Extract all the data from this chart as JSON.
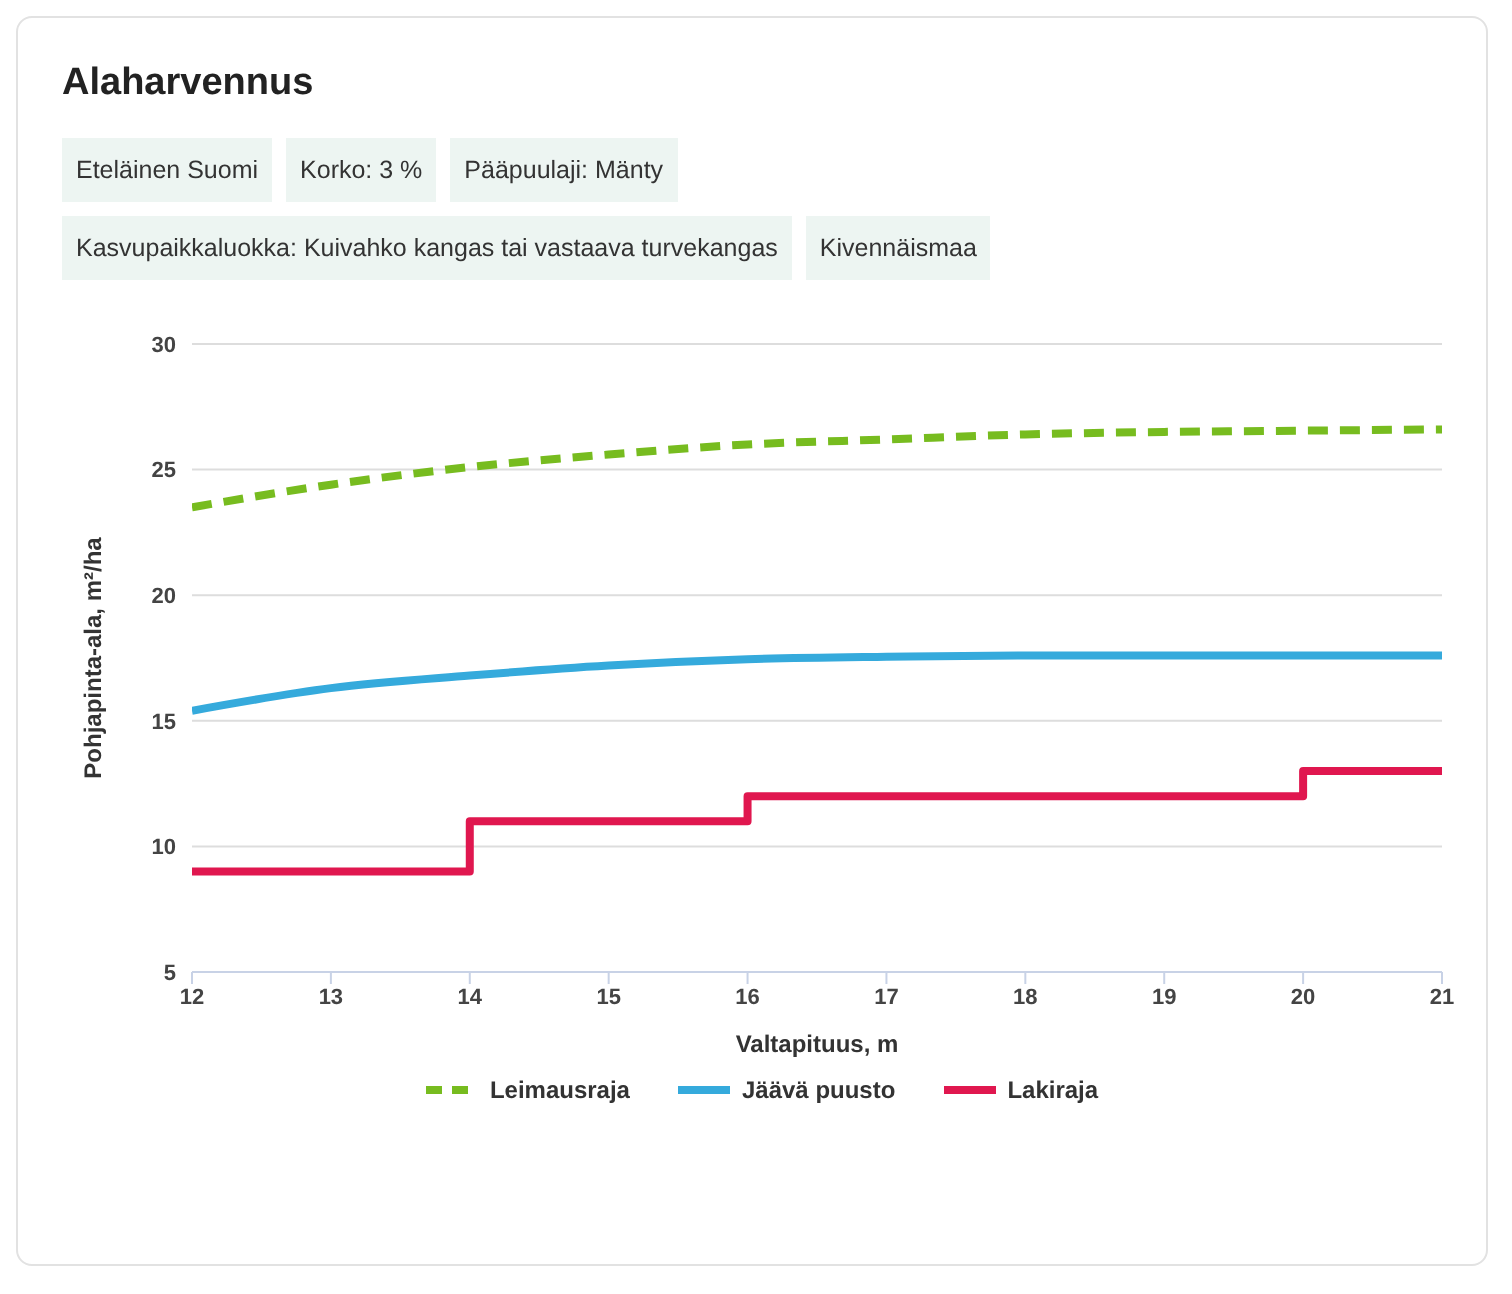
{
  "chart_data": {
    "type": "line",
    "title": "Alaharvennus",
    "annotations": [
      "Eteläinen Suomi",
      "Korko: 3 %",
      "Pääpuulaji: Mänty",
      "Kasvupaikkaluokka: Kuivahko kangas tai vastaava turvekangas",
      "Kivennäismaa"
    ],
    "xlabel": "Valtapituus, m",
    "ylabel": "Pohjapinta-ala, m²/ha",
    "x": [
      12,
      13,
      14,
      15,
      16,
      17,
      18,
      19,
      20,
      21
    ],
    "series": [
      {
        "name": "Leimausraja",
        "color": "#77bc1f",
        "line_style": "dashed",
        "values": [
          23.5,
          24.4,
          25.1,
          25.6,
          26.0,
          26.2,
          26.4,
          26.5,
          26.55,
          26.6
        ]
      },
      {
        "name": "Jäävä puusto",
        "color": "#35aadc",
        "line_style": "solid",
        "values": [
          15.4,
          16.3,
          16.8,
          17.2,
          17.45,
          17.55,
          17.6,
          17.6,
          17.6,
          17.6
        ]
      },
      {
        "name": "Lakiraja",
        "color": "#e0174f",
        "type": "step",
        "line_style": "solid",
        "values": [
          9,
          9,
          11,
          11,
          12,
          12,
          12,
          12,
          13,
          13
        ]
      }
    ],
    "xlim": [
      12,
      21
    ],
    "xticks": [
      12,
      13,
      14,
      15,
      16,
      17,
      18,
      19,
      20,
      21
    ],
    "ylim": [
      5,
      30
    ],
    "yticks": [
      5,
      10,
      15,
      20,
      25,
      30
    ],
    "grid": "y",
    "legend": "bottom",
    "marker": "none"
  }
}
